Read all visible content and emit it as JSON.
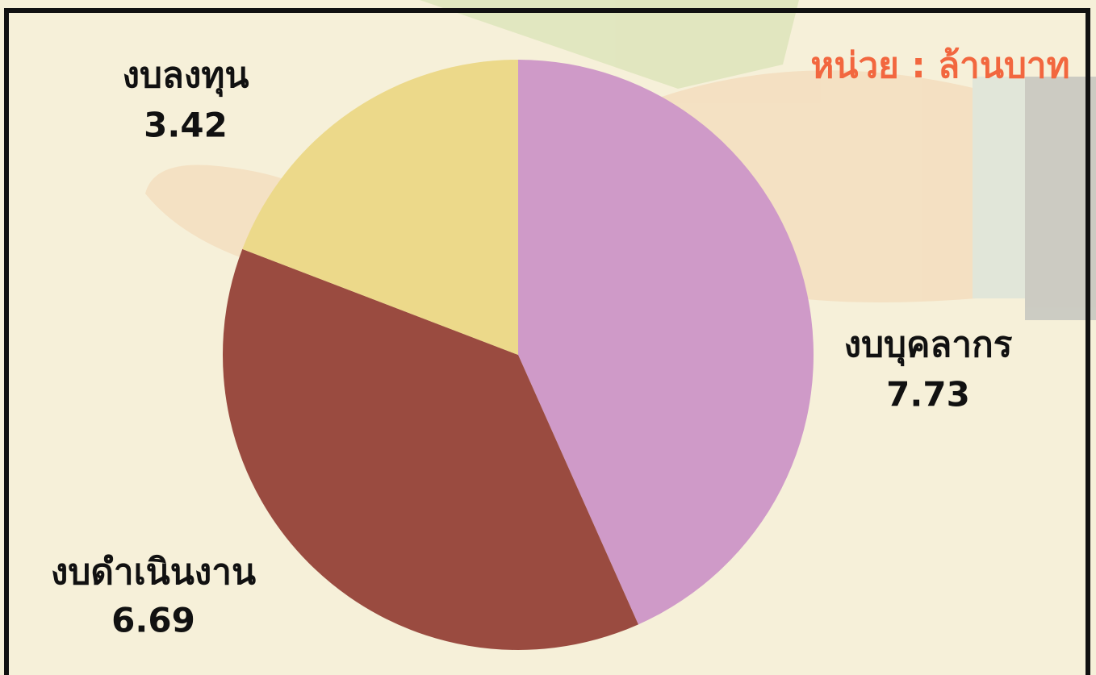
{
  "chart_data": {
    "type": "pie",
    "annotation": "หน่วย : ล้านบาท",
    "categories": [
      "งบบุคลากร",
      "งบดำเนินงาน",
      "งบลงทุน"
    ],
    "values": [
      7.73,
      6.69,
      3.42
    ],
    "colors": [
      "#cf9ac8",
      "#9a4b40",
      "#ecd98a"
    ]
  }
}
